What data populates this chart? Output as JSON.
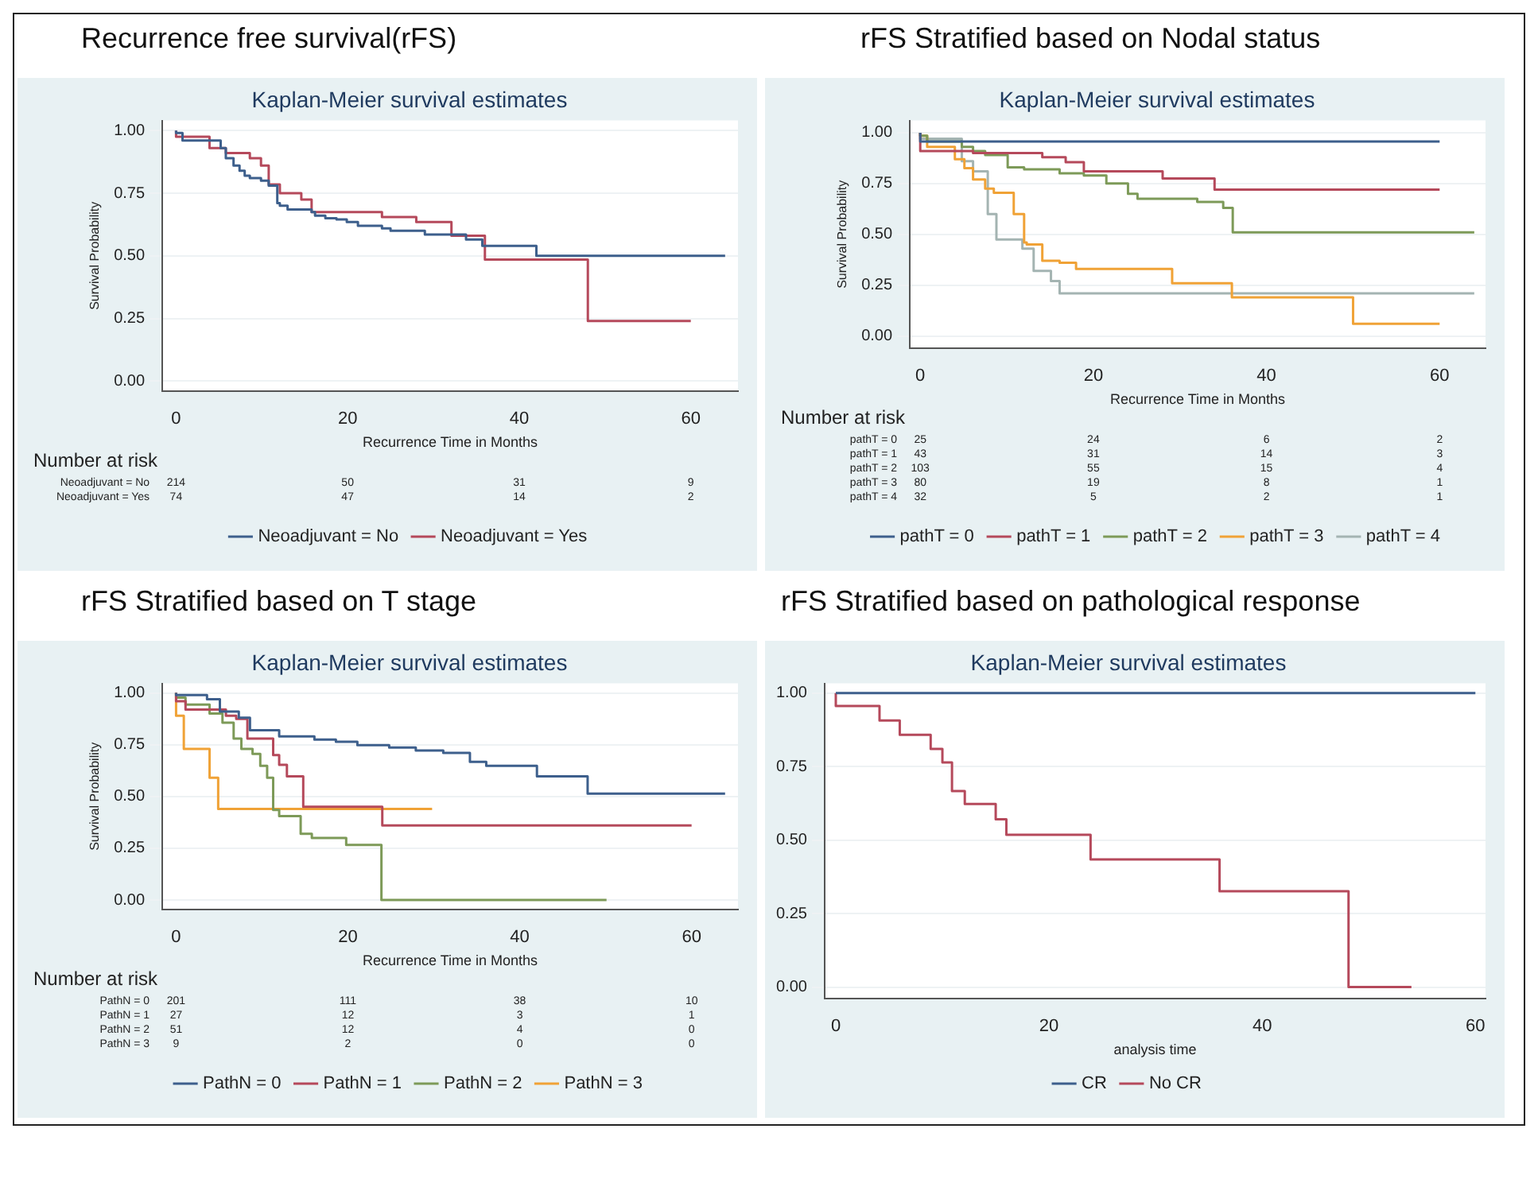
{
  "chart_data": [
    {
      "type": "step",
      "title": "Recurrence free survival(rFS)",
      "subtitle": "Kaplan-Meier survival estimates",
      "xlabel": "Recurrence Time in Months",
      "ylabel": "Survival Probability",
      "xlim": [
        -1.6,
        65.5
      ],
      "ylim": [
        -0.04,
        1.04
      ],
      "xticks": [
        0,
        20,
        40,
        60
      ],
      "yticks": [
        {
          "value": 0,
          "label": "0.00"
        },
        {
          "value": 0.25,
          "label": "0.25"
        },
        {
          "value": 0.5,
          "label": "0.50"
        },
        {
          "value": 0.75,
          "label": "0.75"
        },
        {
          "value": 1,
          "label": "1.00"
        }
      ],
      "grid": "y",
      "legend": "bottom",
      "marker": "none",
      "line_style": "solid",
      "annotations": [
        "Number at risk",
        "Neoadjuvant = No",
        "214",
        "50",
        "31",
        "9",
        "Neoadjuvant = Yes",
        "74",
        "47",
        "14",
        "2"
      ],
      "series": [
        {
          "name": "Neoadjuvant = No",
          "color": "#3d5f8c",
          "x": [
            0,
            0.75,
            5.2,
            5.8,
            6.7,
            7.4,
            8,
            8.6,
            9.9,
            10.8,
            11.8,
            12.1,
            13,
            15.8,
            16.2,
            17.4,
            18.7,
            19.9,
            21.2,
            24,
            25,
            29,
            33.8,
            35.7,
            42,
            50.1,
            64
          ],
          "values": [
            1,
            0.99,
            0.96,
            0.93,
            0.89,
            0.86,
            0.84,
            0.82,
            0.81,
            0.8,
            0.78,
            0.71,
            0.7,
            0.685,
            0.675,
            0.66,
            0.65,
            0.645,
            0.635,
            0.62,
            0.61,
            0.6,
            0.585,
            0.565,
            0.54,
            0.5,
            0.5
          ]
        },
        {
          "name": "Neoadjuvant = Yes",
          "color": "#b5495b",
          "x": [
            0,
            3.9,
            5.8,
            8.6,
            9.9,
            10.8,
            12.1,
            14.6,
            15.8,
            24,
            28,
            32.1,
            36,
            48,
            54.1,
            60
          ],
          "values": [
            1,
            0.975,
            0.93,
            0.91,
            0.89,
            0.86,
            0.785,
            0.75,
            0.725,
            0.675,
            0.655,
            0.635,
            0.58,
            0.485,
            0.24,
            0.24
          ]
        }
      ]
    },
    {
      "type": "step",
      "title": "rFS Stratified based on Nodal status",
      "subtitle": "Kaplan-Meier survival estimates",
      "xlabel": "Recurrence Time in Months",
      "ylabel": "Survival Probability",
      "xlim": [
        -1.2,
        65.3
      ],
      "ylim": [
        -0.06,
        1.06
      ],
      "xticks": [
        0,
        20,
        40,
        60
      ],
      "yticks": [
        {
          "value": 0,
          "label": "0.00"
        },
        {
          "value": 0.25,
          "label": "0.25"
        },
        {
          "value": 0.5,
          "label": "0.50"
        },
        {
          "value": 0.75,
          "label": "0.75"
        },
        {
          "value": 1,
          "label": "1.00"
        }
      ],
      "grid": "y",
      "legend": "bottom",
      "marker": "none",
      "line_style": "solid",
      "annotations": [
        "Number at risk",
        "pathT = 0",
        "25",
        "24",
        "6",
        "2",
        "pathT = 1",
        "43",
        "31",
        "14",
        "3",
        "pathT = 2",
        "103",
        "55",
        "15",
        "4",
        "pathT = 3",
        "80",
        "19",
        "8",
        "1",
        "pathT = 4",
        "32",
        "5",
        "2",
        "1"
      ],
      "series": [
        {
          "name": "pathT = 0",
          "color": "#3d5f8c",
          "x": [
            0,
            24,
            60
          ],
          "values": [
            1,
            0.957,
            0.957
          ]
        },
        {
          "name": "pathT = 1",
          "color": "#b5495b",
          "x": [
            0,
            6.1,
            14.1,
            16.8,
            18.9,
            28,
            34,
            42.1,
            60
          ],
          "values": [
            1,
            0.91,
            0.9,
            0.88,
            0.855,
            0.81,
            0.775,
            0.72,
            0.72
          ]
        },
        {
          "name": "pathT = 2",
          "color": "#7d9a58",
          "x": [
            0,
            0.8,
            4.8,
            6.1,
            7.5,
            10.1,
            12,
            16.1,
            18.9,
            21.5,
            24,
            25.1,
            32,
            35,
            36.1,
            48,
            64
          ],
          "values": [
            1,
            0.985,
            0.957,
            0.93,
            0.91,
            0.89,
            0.83,
            0.82,
            0.8,
            0.79,
            0.75,
            0.7,
            0.675,
            0.66,
            0.63,
            0.51,
            0.51
          ]
        },
        {
          "name": "pathT = 3",
          "color": "#f0a236",
          "x": [
            0,
            0.8,
            4,
            5.1,
            6.1,
            7.5,
            8.5,
            10.8,
            12,
            12.3,
            14.1,
            16.1,
            18,
            29.1,
            36,
            50,
            54,
            60
          ],
          "values": [
            1,
            0.985,
            0.93,
            0.87,
            0.826,
            0.77,
            0.725,
            0.705,
            0.6,
            0.46,
            0.45,
            0.37,
            0.36,
            0.33,
            0.26,
            0.19,
            0.06,
            0.06
          ]
        },
        {
          "name": "pathT = 4",
          "color": "#a4b4b2",
          "x": [
            0,
            4.8,
            6.1,
            7.8,
            8.8,
            11.8,
            13.1,
            15.1,
            16.1,
            22.1,
            64
          ],
          "values": [
            1,
            0.97,
            0.86,
            0.81,
            0.6,
            0.475,
            0.43,
            0.32,
            0.27,
            0.21,
            0.21
          ]
        }
      ]
    },
    {
      "type": "step",
      "title": "rFS Stratified based on T stage",
      "subtitle": "Kaplan-Meier survival estimates",
      "xlabel": "Recurrence Time in Months",
      "ylabel": "Survival Probability",
      "xlim": [
        -1.6,
        65.4
      ],
      "ylim": [
        -0.046,
        1.046
      ],
      "xticks": [
        0,
        20,
        40,
        60
      ],
      "yticks": [
        {
          "value": 0,
          "label": "0.00"
        },
        {
          "value": 0.25,
          "label": "0.25"
        },
        {
          "value": 0.5,
          "label": "0.50"
        },
        {
          "value": 0.75,
          "label": "0.75"
        },
        {
          "value": 1,
          "label": "1.00"
        }
      ],
      "grid": "y",
      "legend": "bottom",
      "marker": "none",
      "line_style": "solid",
      "annotations": [
        "Number at risk",
        "PathN = 0",
        "201",
        "111",
        "38",
        "10",
        "PathN = 1",
        "27",
        "12",
        "3",
        "1",
        "PathN = 2",
        "51",
        "12",
        "4",
        "0",
        "PathN = 3",
        "9",
        "2",
        "0",
        "0"
      ],
      "series": [
        {
          "name": "PathN = 0",
          "color": "#3d5f8c",
          "x": [
            0,
            3.6,
            5.1,
            7.3,
            8.6,
            12,
            16.1,
            18.6,
            21.1,
            24.8,
            27.9,
            31.1,
            34.2,
            36.1,
            42,
            47.9,
            54,
            63.9
          ],
          "values": [
            1,
            0.99,
            0.97,
            0.91,
            0.88,
            0.82,
            0.79,
            0.775,
            0.764,
            0.748,
            0.736,
            0.722,
            0.71,
            0.667,
            0.648,
            0.597,
            0.514,
            0.514
          ]
        },
        {
          "name": "PathN = 1",
          "color": "#b5495b",
          "x": [
            0,
            1.1,
            5.8,
            7,
            8.3,
            11.3,
            12,
            12.9,
            14.8,
            24,
            29.1,
            60
          ],
          "values": [
            1,
            0.96,
            0.92,
            0.89,
            0.875,
            0.78,
            0.7,
            0.653,
            0.597,
            0.45,
            0.36,
            0.36
          ]
        },
        {
          "name": "PathN = 2",
          "color": "#7d9a58",
          "x": [
            0,
            1.1,
            3.9,
            5.4,
            6.7,
            7.6,
            8.9,
            9.8,
            10.6,
            11.3,
            12,
            14.5,
            15.8,
            19.8,
            23.9,
            50.1
          ],
          "values": [
            1,
            0.977,
            0.944,
            0.9,
            0.856,
            0.78,
            0.73,
            0.706,
            0.648,
            0.59,
            0.435,
            0.405,
            0.32,
            0.3,
            0.266,
            0
          ]
        },
        {
          "name": "PathN = 3",
          "color": "#f0a236",
          "x": [
            0,
            0.9,
            3.9,
            4.9,
            12,
            29.8
          ],
          "values": [
            1,
            0.89,
            0.73,
            0.59,
            0.44,
            0.44
          ]
        }
      ]
    },
    {
      "type": "step",
      "title": "rFS Stratified based on pathological response",
      "subtitle": "Kaplan-Meier survival estimates",
      "xlabel": "analysis time",
      "xlim": [
        -1.05,
        60.95
      ],
      "ylim": [
        -0.039,
        1.033
      ],
      "xticks": [
        0,
        20,
        40,
        60
      ],
      "yticks": [
        {
          "value": 0,
          "label": "0.00"
        },
        {
          "value": 0.25,
          "label": "0.25"
        },
        {
          "value": 0.5,
          "label": "0.50"
        },
        {
          "value": 0.75,
          "label": "0.75"
        },
        {
          "value": 1,
          "label": "1.00"
        }
      ],
      "grid": "y",
      "legend": "bottom",
      "marker": "none",
      "line_style": "solid",
      "series": [
        {
          "name": "CR",
          "color": "#3d5f8c",
          "x": [
            0,
            60
          ],
          "values": [
            1,
            1
          ]
        },
        {
          "name": "No CR",
          "color": "#b5495b",
          "x": [
            0,
            4.1,
            6,
            8.9,
            10,
            10.9,
            12.1,
            15,
            16,
            23.9,
            36,
            48.1,
            54
          ],
          "values": [
            1,
            0.956,
            0.907,
            0.858,
            0.81,
            0.764,
            0.667,
            0.623,
            0.571,
            0.518,
            0.434,
            0.326,
            0
          ]
        }
      ]
    }
  ]
}
